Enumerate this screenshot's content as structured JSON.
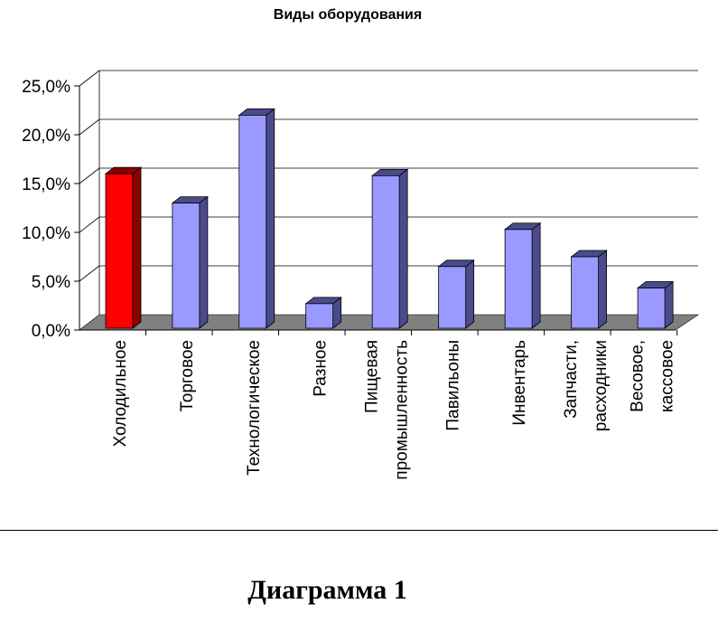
{
  "title": "Виды оборудования",
  "caption": "Диаграмма 1",
  "colors": {
    "highlight": "#ff0000",
    "highlight_dark": "#8b0000",
    "bar": "#9999ff",
    "bar_dark": "#4b4b8c",
    "floor": "#808080",
    "grid": "#000000"
  },
  "chart_data": {
    "type": "bar",
    "title": "Виды оборудования",
    "categories": [
      [
        "Холодильное"
      ],
      [
        "Торговое"
      ],
      [
        "Технологическое"
      ],
      [
        "Разное"
      ],
      [
        "Пищевая",
        "промышленность"
      ],
      [
        "Павильоны"
      ],
      [
        "Инвентарь"
      ],
      [
        "Запчасти,",
        "расходники"
      ],
      [
        "Весовое,",
        "кассовое"
      ]
    ],
    "values": [
      16.0,
      13.0,
      22.0,
      2.7,
      15.8,
      6.5,
      10.3,
      7.5,
      4.3
    ],
    "highlight_index": 0,
    "ylim": [
      0,
      25
    ],
    "yticks": [
      "0,0%",
      "5,0%",
      "10,0%",
      "15,0%",
      "20,0%",
      "25,0%"
    ],
    "ytick_values": [
      0,
      5,
      10,
      15,
      20,
      25
    ],
    "grid": true,
    "style": "3d-column"
  }
}
